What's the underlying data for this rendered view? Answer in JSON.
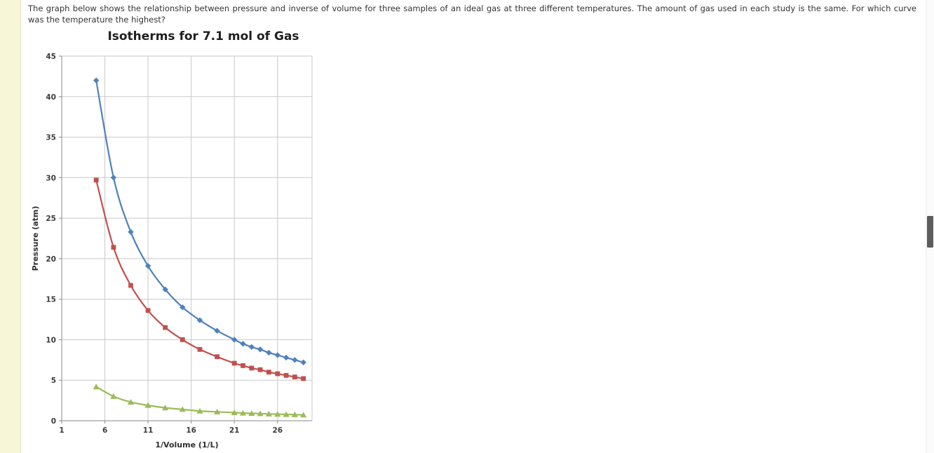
{
  "page": {
    "question": "The graph below shows the relationship between pressure and inverse of volume for three samples of an ideal gas at three different temperatures. The amount of gas used in each study is the same. For which curve was the temperature the highest?"
  },
  "chart_data": {
    "type": "line",
    "title": "Isotherms for 7.1 mol of Gas",
    "xlabel": "1/Volume (1/L)",
    "ylabel": "Pressure (atm)",
    "xlim": [
      1,
      30
    ],
    "ylim": [
      0,
      45
    ],
    "x_ticks": [
      1,
      6,
      11,
      16,
      21,
      26
    ],
    "y_ticks": [
      0,
      5,
      10,
      15,
      20,
      25,
      30,
      35,
      40,
      45
    ],
    "grid": true,
    "legend": "none",
    "series": [
      {
        "name": "blue-diamond",
        "color": "#4F81BD",
        "marker": "diamond",
        "x": [
          5,
          7,
          9,
          11,
          13,
          15,
          17,
          19,
          21,
          22,
          23,
          24,
          25,
          26,
          27,
          28,
          29
        ],
        "y": [
          42,
          30,
          23.3,
          19.1,
          16.2,
          14,
          12.4,
          11.1,
          10,
          9.5,
          9.1,
          8.8,
          8.4,
          8.1,
          7.8,
          7.5,
          7.2
        ]
      },
      {
        "name": "red-square",
        "color": "#C0504D",
        "marker": "square",
        "x": [
          5,
          7,
          9,
          11,
          13,
          15,
          17,
          19,
          21,
          22,
          23,
          24,
          25,
          26,
          27,
          28,
          29
        ],
        "y": [
          29.7,
          21.4,
          16.7,
          13.6,
          11.5,
          10,
          8.8,
          7.9,
          7.1,
          6.8,
          6.5,
          6.3,
          6.0,
          5.8,
          5.6,
          5.4,
          5.2
        ]
      },
      {
        "name": "green-triangle",
        "color": "#9BBB59",
        "marker": "triangle",
        "x": [
          5,
          7,
          9,
          11,
          13,
          15,
          17,
          19,
          21,
          22,
          23,
          24,
          25,
          26,
          27,
          28,
          29
        ],
        "y": [
          4.2,
          3.0,
          2.3,
          1.9,
          1.6,
          1.4,
          1.2,
          1.1,
          1.0,
          0.95,
          0.91,
          0.88,
          0.84,
          0.81,
          0.78,
          0.75,
          0.72
        ]
      }
    ]
  }
}
